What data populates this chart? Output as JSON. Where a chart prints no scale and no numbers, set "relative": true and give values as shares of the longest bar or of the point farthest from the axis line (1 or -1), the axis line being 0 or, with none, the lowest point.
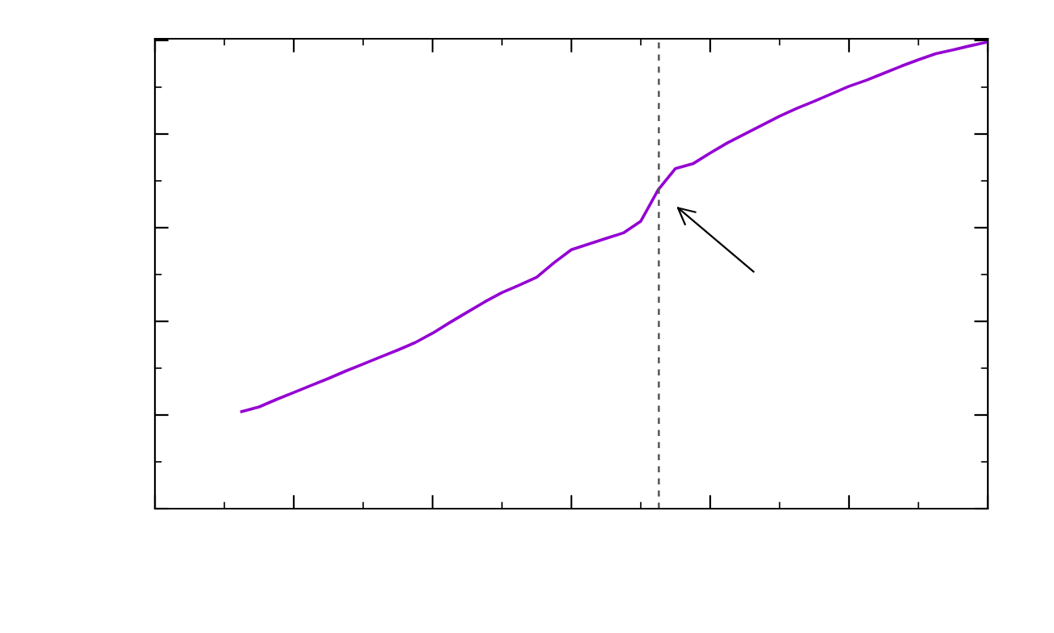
{
  "chart_data": {
    "type": "line",
    "relative": true,
    "categories": [
      null,
      null,
      null,
      null,
      null,
      null,
      null,
      null,
      null,
      null,
      null,
      null,
      null,
      null,
      null,
      null,
      null,
      null,
      null,
      null,
      null,
      null,
      null,
      null,
      null,
      null,
      null,
      null,
      null,
      null,
      null,
      null,
      null,
      null,
      null,
      null,
      null,
      null,
      null,
      null,
      null,
      null,
      null,
      null,
      null,
      null,
      null,
      null,
      null
    ],
    "series": [
      {
        "color": "#9400d3",
        "values": [
          null,
          null,
          null,
          null,
          null,
          0.208,
          0.218,
          0.234,
          0.249,
          0.264,
          0.279,
          0.295,
          0.31,
          0.325,
          0.34,
          0.356,
          0.376,
          0.399,
          0.421,
          0.443,
          0.463,
          0.479,
          0.496,
          0.527,
          0.555,
          0.567,
          0.579,
          0.591,
          0.616,
          0.683,
          0.729,
          0.739,
          0.762,
          0.784,
          0.803,
          0.822,
          0.841,
          0.858,
          0.873,
          0.889,
          0.905,
          0.918,
          0.933,
          0.948,
          0.962,
          0.975,
          0.983,
          0.992,
          1.0
        ]
      }
    ],
    "grid": false
  }
}
